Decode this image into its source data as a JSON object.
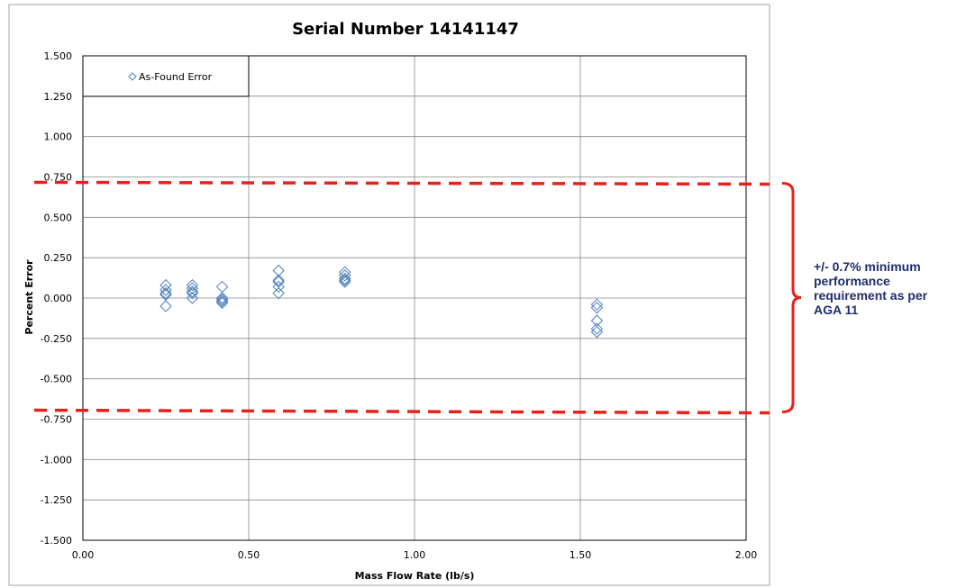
{
  "chart_data": {
    "type": "scatter",
    "title": "Serial Number 14141147",
    "xlabel": "Mass Flow Rate (lb/s)",
    "ylabel": "Percent Error",
    "xlim": [
      0,
      2
    ],
    "ylim": [
      -1.5,
      1.5
    ],
    "xticks": [
      "0.00",
      "0.50",
      "1.00",
      "1.50",
      "2.00"
    ],
    "xtick_values": [
      0,
      0.5,
      1,
      1.5,
      2
    ],
    "yticks": [
      "1.500",
      "1.250",
      "1.000",
      "0.750",
      "0.500",
      "0.250",
      "0.000",
      "-0.250",
      "-0.500",
      "-0.750",
      "-1.000",
      "-1.250",
      "-1.500"
    ],
    "ytick_values": [
      1.5,
      1.25,
      1,
      0.75,
      0.5,
      0.25,
      0,
      -0.25,
      -0.5,
      -0.75,
      -1,
      -1.25,
      -1.5
    ],
    "grid": true,
    "legend_position": "top-left",
    "series": [
      {
        "name": "As-Found Error",
        "marker": "diamond",
        "color": "#4f81bd",
        "points": [
          {
            "x": 0.25,
            "y": 0.08
          },
          {
            "x": 0.25,
            "y": 0.05
          },
          {
            "x": 0.25,
            "y": 0.03
          },
          {
            "x": 0.25,
            "y": 0.02
          },
          {
            "x": 0.25,
            "y": -0.05
          },
          {
            "x": 0.33,
            "y": 0.08
          },
          {
            "x": 0.33,
            "y": 0.06
          },
          {
            "x": 0.33,
            "y": 0.04
          },
          {
            "x": 0.33,
            "y": 0.03
          },
          {
            "x": 0.33,
            "y": 0.0
          },
          {
            "x": 0.42,
            "y": 0.07
          },
          {
            "x": 0.42,
            "y": 0.0
          },
          {
            "x": 0.42,
            "y": -0.01
          },
          {
            "x": 0.42,
            "y": -0.02
          },
          {
            "x": 0.42,
            "y": -0.03
          },
          {
            "x": 0.59,
            "y": 0.17
          },
          {
            "x": 0.59,
            "y": 0.11
          },
          {
            "x": 0.59,
            "y": 0.1
          },
          {
            "x": 0.59,
            "y": 0.07
          },
          {
            "x": 0.59,
            "y": 0.03
          },
          {
            "x": 0.79,
            "y": 0.16
          },
          {
            "x": 0.79,
            "y": 0.14
          },
          {
            "x": 0.79,
            "y": 0.12
          },
          {
            "x": 0.79,
            "y": 0.11
          },
          {
            "x": 0.79,
            "y": 0.1
          },
          {
            "x": 1.55,
            "y": -0.04
          },
          {
            "x": 1.55,
            "y": -0.06
          },
          {
            "x": 1.55,
            "y": -0.14
          },
          {
            "x": 1.55,
            "y": -0.19
          },
          {
            "x": 1.55,
            "y": -0.21
          }
        ]
      }
    ],
    "limit_lines": [
      {
        "y": 0.7,
        "color": "#e8211b",
        "style": "dashed"
      },
      {
        "y": -0.7,
        "color": "#e8211b",
        "style": "dashed"
      }
    ],
    "annotation": {
      "lines": [
        "+/- 0.7% minimum",
        "performance",
        "requirement as per",
        "AGA 11"
      ],
      "color": "#1f2d6e"
    },
    "colors": {
      "marker": "#4f81bd",
      "limit": "#e8211b",
      "annotation_text": "#1f2d6e",
      "grid": "#888888"
    }
  }
}
